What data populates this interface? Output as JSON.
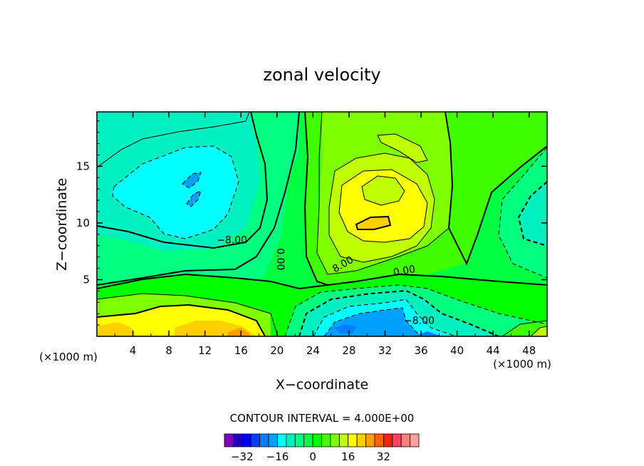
{
  "chart_data": {
    "type": "heatmap",
    "title": "zonal velocity",
    "xlabel": "X−coordinate",
    "ylabel": "Z−coordinate",
    "x_unit_label": "(×1000 m)",
    "xlim": [
      0,
      50
    ],
    "ylim": [
      0,
      19.8
    ],
    "x_ticks": [
      4,
      8,
      12,
      16,
      20,
      24,
      28,
      32,
      36,
      40,
      44,
      48
    ],
    "x_tick_labels": [
      "4",
      "8",
      "12",
      "16",
      "20",
      "24",
      "28",
      "32",
      "36",
      "40",
      "44",
      "48"
    ],
    "y_ticks": [
      5,
      10,
      15
    ],
    "y_tick_labels": [
      "5",
      "10",
      "15"
    ],
    "contour_interval_text": "CONTOUR INTERVAL = 4.000E+00",
    "contour_labels": [
      {
        "text": "−8.00",
        "x": 15.0,
        "z": 8.2
      },
      {
        "text": "0.00",
        "x": 20.0,
        "z": 6.8
      },
      {
        "text": "8.00",
        "x": 27.5,
        "z": 6.1
      },
      {
        "text": "0.00",
        "x": 34.2,
        "z": 5.5
      },
      {
        "text": "−8.00",
        "x": 35.8,
        "z": 1.1
      }
    ],
    "colorbar": {
      "colors": [
        "#7f00bf",
        "#1f00bf",
        "#0000ff",
        "#0040ff",
        "#0080ff",
        "#00a0ff",
        "#00ffff",
        "#00f0c0",
        "#00ff80",
        "#00ff40",
        "#00ff00",
        "#40ff00",
        "#80ff00",
        "#c0ff00",
        "#ffff00",
        "#ffd000",
        "#ffa000",
        "#ff6000",
        "#ff2000",
        "#ff4060",
        "#ff8080",
        "#ffa0a0"
      ],
      "tick_labels": [
        "−32",
        "−16",
        "0",
        "16",
        "32"
      ]
    },
    "regions": [
      {
        "name": "upper-left cyan core",
        "x": [
          2.5,
          16
        ],
        "z": [
          8,
          19
        ],
        "value": -10
      },
      {
        "name": "upper-center yellow core",
        "x": [
          23,
          36
        ],
        "z": [
          7,
          17
        ],
        "value": 10
      },
      {
        "name": "lower-left warm jet",
        "x": [
          0,
          19
        ],
        "z": [
          0,
          2.5
        ],
        "value": 14
      },
      {
        "name": "lower-center blue core",
        "x": [
          23,
          37
        ],
        "z": [
          0,
          3
        ],
        "value": -12
      },
      {
        "name": "right cyan core",
        "x": [
          44,
          50
        ],
        "z": [
          8,
          13
        ],
        "value": -8
      }
    ]
  }
}
